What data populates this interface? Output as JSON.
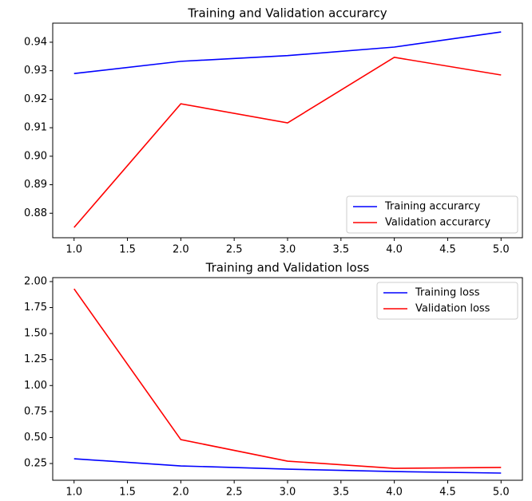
{
  "chart_data": [
    {
      "type": "line",
      "title": "Training and Validation accurarcy",
      "x": [
        1,
        2,
        3,
        4,
        5
      ],
      "series": [
        {
          "name": "Training accurarcy",
          "color": "#0000ff",
          "values": [
            0.929,
            0.9333,
            0.9353,
            0.9383,
            0.9436
          ]
        },
        {
          "name": "Validation accurarcy",
          "color": "#ff0000",
          "values": [
            0.875,
            0.9184,
            0.9117,
            0.9347,
            0.9285
          ]
        }
      ],
      "xlim": [
        0.8,
        5.2
      ],
      "xticks": [
        {
          "value": 1,
          "label": "1.0"
        },
        1.5,
        {
          "value": 2,
          "label": "2.0"
        },
        2.5,
        {
          "value": 3,
          "label": "3.0"
        },
        3.5,
        {
          "value": 4,
          "label": "4.0"
        },
        4.5,
        {
          "value": 5,
          "label": "5.0"
        }
      ],
      "ylim": [
        0.8714,
        0.9467
      ],
      "yticks": [
        0.88,
        0.89,
        {
          "value": 0.9,
          "label": "0.90"
        },
        0.91,
        0.92,
        0.93,
        0.94
      ],
      "legend": "lower right"
    },
    {
      "type": "line",
      "title": "Training and Validation loss",
      "x": [
        1,
        2,
        3,
        4,
        5
      ],
      "series": [
        {
          "name": "Training loss",
          "color": "#0000ff",
          "values": [
            0.296,
            0.227,
            0.196,
            0.173,
            0.158
          ]
        },
        {
          "name": "Validation loss",
          "color": "#ff0000",
          "values": [
            1.93,
            0.48,
            0.273,
            0.204,
            0.212
          ]
        }
      ],
      "xlim": [
        0.8,
        5.2
      ],
      "xticks": [
        {
          "value": 1,
          "label": "1.0"
        },
        1.5,
        {
          "value": 2,
          "label": "2.0"
        },
        2.5,
        {
          "value": 3,
          "label": "3.0"
        },
        3.5,
        {
          "value": 4,
          "label": "4.0"
        },
        4.5,
        {
          "value": 5,
          "label": "5.0"
        }
      ],
      "ylim": [
        0.089,
        2.038
      ],
      "yticks": [
        0.25,
        {
          "value": 0.5,
          "label": "0.50"
        },
        0.75,
        {
          "value": 1,
          "label": "1.00"
        },
        1.25,
        {
          "value": 1.5,
          "label": "1.50"
        },
        1.75,
        {
          "value": 2,
          "label": "2.00"
        }
      ],
      "legend": "upper right"
    }
  ]
}
